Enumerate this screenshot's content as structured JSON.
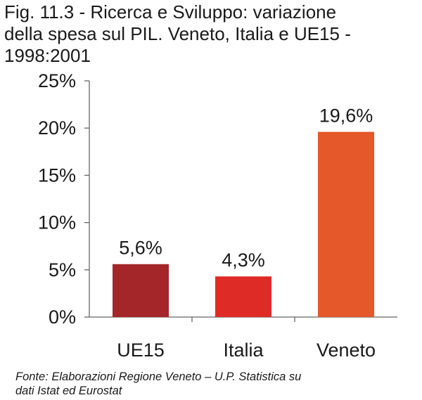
{
  "title_lines": [
    "Fig. 11.3 - Ricerca e Sviluppo: variazione",
    "della spesa sul PIL. Veneto, Italia e UE15 -",
    "1998:2001"
  ],
  "source_lines": [
    "Fonte: Elaborazioni Regione Veneto – U.P. Statistica su",
    "dati Istat ed Eurostat"
  ],
  "chart_data": {
    "type": "bar",
    "categories": [
      "UE15",
      "Italia",
      "Veneto"
    ],
    "values": [
      5.6,
      4.3,
      19.6
    ],
    "value_labels": [
      "5,6%",
      "4,3%",
      "19,6%"
    ],
    "bar_colors": [
      "#a52628",
      "#df2b26",
      "#e4582a"
    ],
    "ylim": [
      0,
      25
    ],
    "yticks": [
      0,
      5,
      10,
      15,
      20,
      25
    ],
    "ytick_labels": [
      "0%",
      "5%",
      "10%",
      "15%",
      "20%",
      "25%"
    ],
    "grid": false,
    "legend": "none"
  }
}
